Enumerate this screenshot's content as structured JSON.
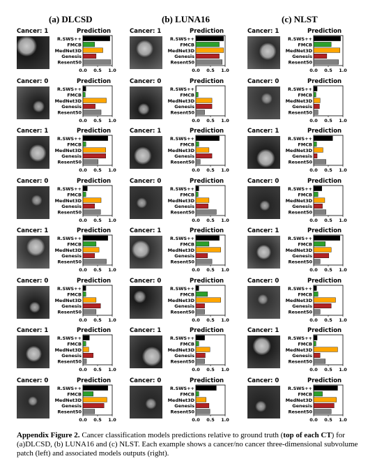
{
  "columns": [
    {
      "title": "(a) DLCSD",
      "labels": [
        "1",
        "0",
        "1",
        "0",
        "1",
        "0",
        "1",
        "0"
      ],
      "values": [
        [
          0.92,
          0.4,
          0.68,
          0.45,
          0.95
        ],
        [
          0.1,
          0.08,
          0.8,
          0.42,
          0.62
        ],
        [
          0.85,
          0.1,
          0.78,
          0.78,
          0.52
        ],
        [
          0.15,
          0.1,
          0.62,
          0.4,
          0.6
        ],
        [
          0.85,
          0.45,
          0.55,
          0.4,
          0.8
        ],
        [
          0.1,
          0.1,
          0.45,
          0.6,
          0.45
        ],
        [
          0.22,
          0.1,
          0.2,
          0.35,
          0.12
        ],
        [
          0.85,
          0.35,
          0.82,
          0.72,
          0.4
        ]
      ]
    },
    {
      "title": "(b) LUNA16",
      "labels": [
        "1",
        "0",
        "1",
        "0",
        "1",
        "0",
        "1",
        "0"
      ],
      "values": [
        [
          0.95,
          0.8,
          0.95,
          0.8,
          0.9
        ],
        [
          0.0,
          0.08,
          0.55,
          0.55,
          0.3
        ],
        [
          0.8,
          0.1,
          0.45,
          0.55,
          0.15
        ],
        [
          0.1,
          0.08,
          0.45,
          0.42,
          0.7
        ],
        [
          0.8,
          0.45,
          0.85,
          0.4,
          0.55
        ],
        [
          0.1,
          0.4,
          0.85,
          0.3,
          0.3
        ],
        [
          0.3,
          0.1,
          0.48,
          0.32,
          0.3
        ],
        [
          0.7,
          0.1,
          0.35,
          0.45,
          0.48
        ]
      ]
    },
    {
      "title": "(c) NLST",
      "labels": [
        "1",
        "0",
        "1",
        "0",
        "1",
        "0",
        "1",
        "0"
      ],
      "values": [
        [
          0.92,
          0.6,
          0.9,
          0.45,
          0.85
        ],
        [
          0.12,
          0.08,
          0.22,
          0.2,
          0.15
        ],
        [
          0.65,
          0.1,
          0.32,
          0.12,
          0.42
        ],
        [
          0.28,
          0.15,
          0.38,
          0.3,
          0.42
        ],
        [
          0.9,
          0.4,
          0.6,
          0.52,
          0.22
        ],
        [
          0.1,
          0.15,
          0.75,
          0.6,
          0.22
        ],
        [
          0.12,
          0.08,
          0.82,
          0.22,
          0.4
        ],
        [
          0.82,
          0.3,
          0.78,
          0.7,
          0.6
        ]
      ]
    }
  ],
  "panel": {
    "cancer_prefix": "Cancer: ",
    "prediction_label": "Prediction",
    "models": [
      "R.SWS++",
      "FMCB",
      "MedNet3D",
      "Genesis",
      "Resent50"
    ],
    "model_colors": [
      "#000000",
      "#2ca02c",
      "#ffa500",
      "#b22222",
      "#808080"
    ],
    "ticks": [
      "0.0",
      "0.5",
      "1.0"
    ]
  },
  "caption": {
    "title": "Appendix Figure 2.",
    "t1": " Cancer classification models predictions relative to ground truth (",
    "b1": "top of each CT",
    "t2": ") for (a)DLCSD, (b) LUNA16 and (c) NLST. Each example shows a cancer/no cancer three-dimensional subvolume patch (left) and associated models outputs (right)."
  }
}
